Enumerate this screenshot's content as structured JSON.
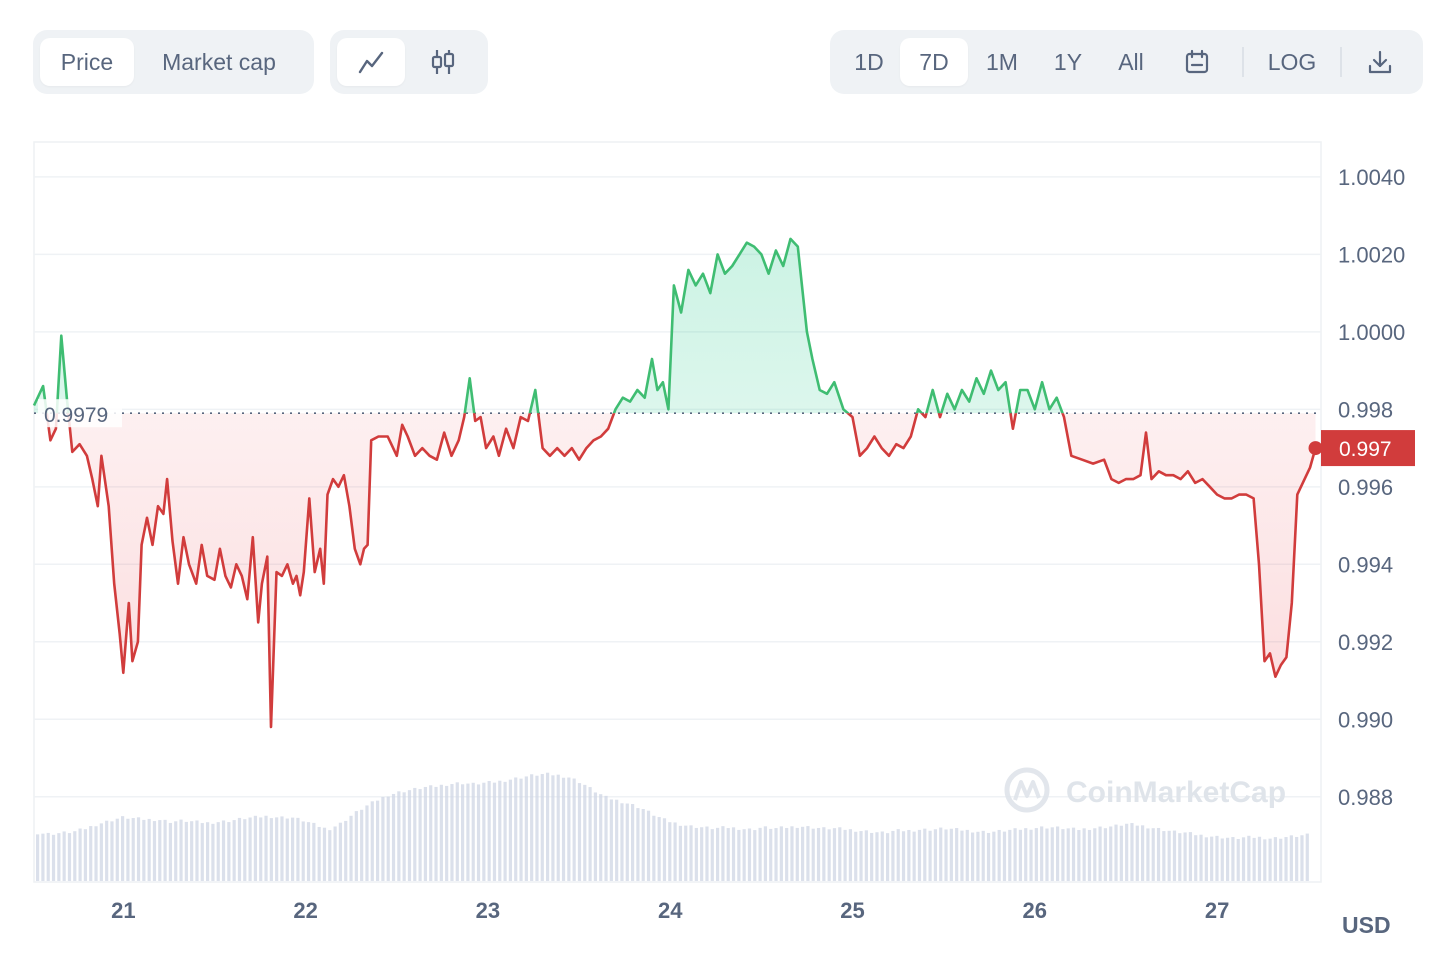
{
  "toolbar": {
    "metric_tabs": [
      "Price",
      "Market cap"
    ],
    "active_metric": "Price",
    "chart_type_icons": [
      "line-chart-icon",
      "candlestick-icon"
    ],
    "ranges": [
      "1D",
      "7D",
      "1M",
      "1Y",
      "All"
    ],
    "active_range": "7D",
    "calendar_icon": "calendar-icon",
    "log_label": "LOG",
    "download_icon": "download-icon"
  },
  "watermark": "CoinMarketCap",
  "colors": {
    "up": "#16c784",
    "up_line": "#3fbd72",
    "down": "#ea3943",
    "down_line": "#d13c3c",
    "grid": "#eff2f5",
    "axis_text": "#58667e",
    "volume": "#cfd6e4"
  },
  "chart_data": {
    "type": "line",
    "currency_label": "USD",
    "reference_price": 0.9979,
    "reference_label": "0.9979",
    "current_price": 0.997,
    "current_label": "0.997",
    "y_ticks": [
      "1.0040",
      "1.0020",
      "1.0000",
      "0.998",
      "0.996",
      "0.994",
      "0.992",
      "0.990",
      "0.988"
    ],
    "y_tick_values": [
      1.004,
      1.002,
      1.0,
      0.998,
      0.996,
      0.994,
      0.992,
      0.99,
      0.988
    ],
    "ylim": [
      0.9858,
      1.0049
    ],
    "x_ticks": [
      "21",
      "22",
      "23",
      "24",
      "25",
      "26",
      "27"
    ],
    "x_tick_values": [
      21,
      22,
      23,
      24,
      25,
      26,
      27
    ],
    "xlim": [
      20.51,
      27.57
    ],
    "price_series": [
      [
        20.51,
        0.9981
      ],
      [
        20.56,
        0.9986
      ],
      [
        20.6,
        0.9972
      ],
      [
        20.63,
        0.9975
      ],
      [
        20.66,
        0.9999
      ],
      [
        20.69,
        0.9983
      ],
      [
        20.72,
        0.9969
      ],
      [
        20.76,
        0.9971
      ],
      [
        20.8,
        0.9968
      ],
      [
        20.83,
        0.9962
      ],
      [
        20.86,
        0.9955
      ],
      [
        20.88,
        0.9968
      ],
      [
        20.92,
        0.9955
      ],
      [
        20.95,
        0.9935
      ],
      [
        20.98,
        0.9922
      ],
      [
        21.0,
        0.9912
      ],
      [
        21.03,
        0.993
      ],
      [
        21.05,
        0.9915
      ],
      [
        21.08,
        0.992
      ],
      [
        21.1,
        0.9945
      ],
      [
        21.13,
        0.9952
      ],
      [
        21.16,
        0.9945
      ],
      [
        21.19,
        0.9955
      ],
      [
        21.22,
        0.9953
      ],
      [
        21.24,
        0.9962
      ],
      [
        21.27,
        0.9946
      ],
      [
        21.3,
        0.9935
      ],
      [
        21.33,
        0.9947
      ],
      [
        21.36,
        0.994
      ],
      [
        21.4,
        0.9935
      ],
      [
        21.43,
        0.9945
      ],
      [
        21.46,
        0.9937
      ],
      [
        21.5,
        0.9936
      ],
      [
        21.53,
        0.9944
      ],
      [
        21.56,
        0.9937
      ],
      [
        21.59,
        0.9934
      ],
      [
        21.62,
        0.994
      ],
      [
        21.65,
        0.9937
      ],
      [
        21.68,
        0.9931
      ],
      [
        21.71,
        0.9947
      ],
      [
        21.74,
        0.9925
      ],
      [
        21.76,
        0.9935
      ],
      [
        21.79,
        0.9942
      ],
      [
        21.81,
        0.9898
      ],
      [
        21.84,
        0.9938
      ],
      [
        21.87,
        0.9937
      ],
      [
        21.9,
        0.994
      ],
      [
        21.93,
        0.9935
      ],
      [
        21.95,
        0.9937
      ],
      [
        21.97,
        0.9932
      ],
      [
        21.99,
        0.9938
      ],
      [
        22.02,
        0.9957
      ],
      [
        22.05,
        0.9938
      ],
      [
        22.08,
        0.9944
      ],
      [
        22.1,
        0.9935
      ],
      [
        22.12,
        0.9958
      ],
      [
        22.15,
        0.9962
      ],
      [
        22.18,
        0.996
      ],
      [
        22.21,
        0.9963
      ],
      [
        22.24,
        0.9955
      ],
      [
        22.27,
        0.9944
      ],
      [
        22.3,
        0.994
      ],
      [
        22.32,
        0.9944
      ],
      [
        22.34,
        0.9945
      ],
      [
        22.36,
        0.9972
      ],
      [
        22.4,
        0.9973
      ],
      [
        22.45,
        0.9973
      ],
      [
        22.5,
        0.9968
      ],
      [
        22.53,
        0.9976
      ],
      [
        22.56,
        0.9973
      ],
      [
        22.6,
        0.9968
      ],
      [
        22.64,
        0.997
      ],
      [
        22.68,
        0.9968
      ],
      [
        22.72,
        0.9967
      ],
      [
        22.76,
        0.9974
      ],
      [
        22.8,
        0.9968
      ],
      [
        22.84,
        0.9972
      ],
      [
        22.87,
        0.9978
      ],
      [
        22.9,
        0.9988
      ],
      [
        22.93,
        0.9977
      ],
      [
        22.96,
        0.9978
      ],
      [
        22.99,
        0.997
      ],
      [
        23.03,
        0.9973
      ],
      [
        23.06,
        0.9968
      ],
      [
        23.1,
        0.9975
      ],
      [
        23.14,
        0.997
      ],
      [
        23.18,
        0.9978
      ],
      [
        23.22,
        0.9977
      ],
      [
        23.26,
        0.9985
      ],
      [
        23.3,
        0.997
      ],
      [
        23.34,
        0.9968
      ],
      [
        23.38,
        0.997
      ],
      [
        23.42,
        0.9968
      ],
      [
        23.46,
        0.997
      ],
      [
        23.5,
        0.9967
      ],
      [
        23.54,
        0.997
      ],
      [
        23.58,
        0.9972
      ],
      [
        23.62,
        0.9973
      ],
      [
        23.66,
        0.9975
      ],
      [
        23.7,
        0.998
      ],
      [
        23.74,
        0.9983
      ],
      [
        23.78,
        0.9982
      ],
      [
        23.82,
        0.9985
      ],
      [
        23.86,
        0.9983
      ],
      [
        23.9,
        0.9993
      ],
      [
        23.93,
        0.9985
      ],
      [
        23.96,
        0.9987
      ],
      [
        23.99,
        0.998
      ],
      [
        24.02,
        1.0012
      ],
      [
        24.06,
        1.0005
      ],
      [
        24.1,
        1.0016
      ],
      [
        24.14,
        1.0012
      ],
      [
        24.18,
        1.0015
      ],
      [
        24.22,
        1.001
      ],
      [
        24.26,
        1.002
      ],
      [
        24.3,
        1.0015
      ],
      [
        24.34,
        1.0017
      ],
      [
        24.38,
        1.002
      ],
      [
        24.42,
        1.0023
      ],
      [
        24.46,
        1.0022
      ],
      [
        24.5,
        1.002
      ],
      [
        24.54,
        1.0015
      ],
      [
        24.58,
        1.0021
      ],
      [
        24.62,
        1.0017
      ],
      [
        24.66,
        1.0024
      ],
      [
        24.7,
        1.0022
      ],
      [
        24.75,
        1.0
      ],
      [
        24.78,
        0.9993
      ],
      [
        24.82,
        0.9985
      ],
      [
        24.86,
        0.9984
      ],
      [
        24.9,
        0.9987
      ],
      [
        24.95,
        0.998
      ],
      [
        25.0,
        0.9978
      ],
      [
        25.04,
        0.9968
      ],
      [
        25.08,
        0.997
      ],
      [
        25.12,
        0.9973
      ],
      [
        25.16,
        0.997
      ],
      [
        25.2,
        0.9968
      ],
      [
        25.24,
        0.9971
      ],
      [
        25.28,
        0.997
      ],
      [
        25.32,
        0.9973
      ],
      [
        25.36,
        0.998
      ],
      [
        25.4,
        0.9978
      ],
      [
        25.44,
        0.9985
      ],
      [
        25.48,
        0.9978
      ],
      [
        25.52,
        0.9984
      ],
      [
        25.56,
        0.998
      ],
      [
        25.6,
        0.9985
      ],
      [
        25.64,
        0.9982
      ],
      [
        25.68,
        0.9988
      ],
      [
        25.72,
        0.9984
      ],
      [
        25.76,
        0.999
      ],
      [
        25.8,
        0.9985
      ],
      [
        25.84,
        0.9987
      ],
      [
        25.88,
        0.9975
      ],
      [
        25.92,
        0.9985
      ],
      [
        25.96,
        0.9985
      ],
      [
        26.0,
        0.998
      ],
      [
        26.04,
        0.9987
      ],
      [
        26.08,
        0.998
      ],
      [
        26.12,
        0.9983
      ],
      [
        26.16,
        0.9978
      ],
      [
        26.2,
        0.9968
      ],
      [
        26.26,
        0.9967
      ],
      [
        26.32,
        0.9966
      ],
      [
        26.38,
        0.9967
      ],
      [
        26.42,
        0.9962
      ],
      [
        26.46,
        0.9961
      ],
      [
        26.5,
        0.9962
      ],
      [
        26.54,
        0.9962
      ],
      [
        26.58,
        0.9963
      ],
      [
        26.61,
        0.9974
      ],
      [
        26.64,
        0.9962
      ],
      [
        26.68,
        0.9964
      ],
      [
        26.72,
        0.9963
      ],
      [
        26.76,
        0.9963
      ],
      [
        26.8,
        0.9962
      ],
      [
        26.84,
        0.9964
      ],
      [
        26.88,
        0.9961
      ],
      [
        26.92,
        0.9962
      ],
      [
        26.96,
        0.996
      ],
      [
        27.0,
        0.9958
      ],
      [
        27.04,
        0.9957
      ],
      [
        27.08,
        0.9957
      ],
      [
        27.12,
        0.9958
      ],
      [
        27.16,
        0.9958
      ],
      [
        27.2,
        0.9957
      ],
      [
        27.23,
        0.994
      ],
      [
        27.26,
        0.9915
      ],
      [
        27.29,
        0.9917
      ],
      [
        27.32,
        0.9911
      ],
      [
        27.35,
        0.9914
      ],
      [
        27.38,
        0.9916
      ],
      [
        27.41,
        0.993
      ],
      [
        27.44,
        0.9958
      ],
      [
        27.48,
        0.9962
      ],
      [
        27.51,
        0.9965
      ],
      [
        27.54,
        0.997
      ]
    ],
    "volume_series": [
      0.42,
      0.41,
      0.42,
      0.43,
      0.46,
      0.5,
      0.53,
      0.56,
      0.55,
      0.54,
      0.54,
      0.52,
      0.53,
      0.52,
      0.51,
      0.52,
      0.53,
      0.55,
      0.56,
      0.57,
      0.56,
      0.56,
      0.53,
      0.49,
      0.45,
      0.5,
      0.58,
      0.65,
      0.71,
      0.76,
      0.79,
      0.81,
      0.83,
      0.84,
      0.86,
      0.87,
      0.86,
      0.87,
      0.88,
      0.9,
      0.92,
      0.94,
      0.95,
      0.94,
      0.92,
      0.87,
      0.8,
      0.74,
      0.71,
      0.68,
      0.64,
      0.58,
      0.53,
      0.5,
      0.48,
      0.47,
      0.46,
      0.47,
      0.46,
      0.45,
      0.47,
      0.46,
      0.47,
      0.48,
      0.47,
      0.46,
      0.46,
      0.45,
      0.44,
      0.43,
      0.42,
      0.44,
      0.44,
      0.45,
      0.45,
      0.46,
      0.45,
      0.44,
      0.43,
      0.43,
      0.44,
      0.45,
      0.46,
      0.47,
      0.47,
      0.46,
      0.45,
      0.46,
      0.47,
      0.48,
      0.5,
      0.49,
      0.47,
      0.45,
      0.43,
      0.42,
      0.4,
      0.39,
      0.38,
      0.37,
      0.38,
      0.38,
      0.37,
      0.38,
      0.39,
      0.4
    ]
  }
}
